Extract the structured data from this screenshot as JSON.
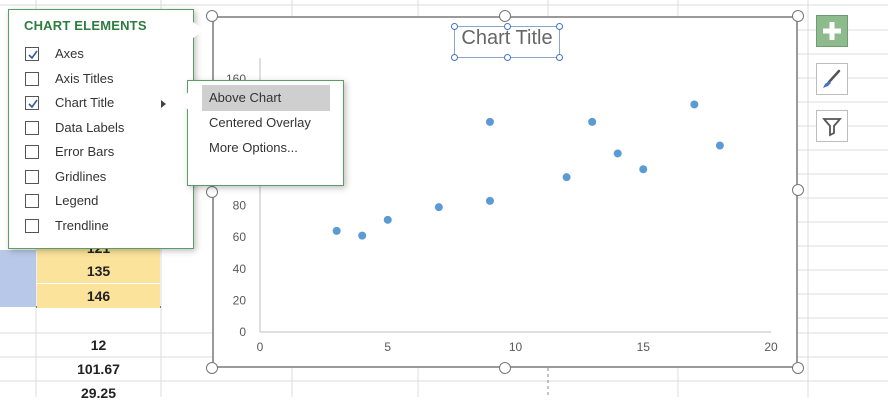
{
  "sheet": {
    "cells": [
      {
        "text": "121",
        "hl": true
      },
      {
        "text": "135",
        "hl": true
      },
      {
        "text": "146",
        "hl": true
      },
      {
        "text": "",
        "hl": false
      },
      {
        "text": "12",
        "hl": false
      },
      {
        "text": "101.67",
        "hl": false
      },
      {
        "text": "29.25",
        "hl": false
      }
    ]
  },
  "chart_data": {
    "type": "scatter",
    "title": "Chart Title",
    "x": [
      3,
      4,
      5,
      7,
      9,
      9,
      12,
      13,
      14,
      15,
      17,
      18
    ],
    "y": [
      64,
      61,
      71,
      79,
      83,
      133,
      98,
      133,
      113,
      103,
      144,
      118
    ],
    "xlim": [
      0,
      20
    ],
    "ylim": [
      0,
      160
    ],
    "x_ticks": [
      0,
      5,
      10,
      15,
      20
    ],
    "y_ticks": [
      0,
      20,
      40,
      60,
      80,
      160
    ],
    "point_color": "#5b9bd5",
    "grid": false,
    "legend": "none"
  },
  "panel": {
    "title": "CHART ELEMENTS",
    "items": [
      {
        "label": "Axes",
        "checked": true
      },
      {
        "label": "Axis Titles",
        "checked": false
      },
      {
        "label": "Chart Title",
        "checked": true
      },
      {
        "label": "Data Labels",
        "checked": false
      },
      {
        "label": "Error Bars",
        "checked": false
      },
      {
        "label": "Gridlines",
        "checked": false
      },
      {
        "label": "Legend",
        "checked": false
      },
      {
        "label": "Trendline",
        "checked": false
      }
    ],
    "accent": "#2d7d3f"
  },
  "submenu": {
    "items": [
      {
        "label": "Above Chart",
        "active": true
      },
      {
        "label": "Centered Overlay",
        "active": false
      },
      {
        "label": "More Options...",
        "active": false
      }
    ]
  },
  "side_buttons": [
    {
      "icon": "plus-icon"
    },
    {
      "icon": "paintbrush-icon"
    },
    {
      "icon": "filter-icon"
    }
  ]
}
